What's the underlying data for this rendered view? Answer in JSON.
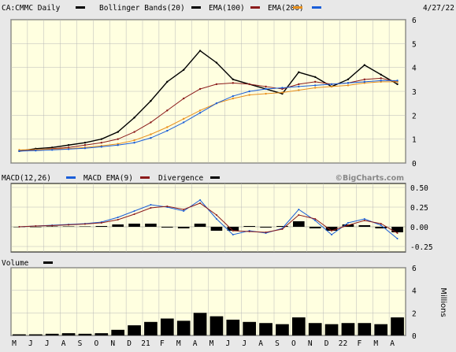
{
  "chart_data": [
    {
      "type": "line",
      "panel": "price",
      "date_label": "4/27/22",
      "legend": [
        {
          "label": "CA:CMMC Daily",
          "color": "#000000"
        },
        {
          "label": "Bollinger Bands(20)",
          "color": "#000000"
        },
        {
          "label": "EMA(100)",
          "color": "#8b1a1a"
        },
        {
          "label": "EMA(200)",
          "color": "#e8901c"
        },
        {
          "label": "",
          "color": "#1a5ed8"
        }
      ],
      "ylim": [
        0,
        6
      ],
      "yticks": [
        "0",
        "1",
        "2",
        "3",
        "4",
        "5",
        "6"
      ],
      "x": [
        "2020-05",
        "2020-06",
        "2020-07",
        "2020-08",
        "2020-09",
        "2020-10",
        "2020-11",
        "2020-12",
        "2021-01",
        "2021-02",
        "2021-03",
        "2021-04",
        "2021-05",
        "2021-06",
        "2021-07",
        "2021-08",
        "2021-09",
        "2021-10",
        "2021-11",
        "2021-12",
        "2022-01",
        "2022-02",
        "2022-03",
        "2022-04"
      ],
      "series": [
        {
          "name": "CA:CMMC Daily",
          "color": "#000000",
          "values": [
            0.5,
            0.6,
            0.65,
            0.75,
            0.85,
            1.0,
            1.3,
            1.9,
            2.6,
            3.4,
            3.9,
            4.7,
            4.2,
            3.5,
            3.3,
            3.1,
            2.9,
            3.8,
            3.6,
            3.2,
            3.5,
            4.1,
            3.7,
            3.3
          ]
        },
        {
          "name": "EMA(100)",
          "color": "#8b1a1a",
          "values": [
            0.5,
            0.55,
            0.6,
            0.65,
            0.75,
            0.85,
            1.0,
            1.3,
            1.7,
            2.2,
            2.7,
            3.1,
            3.3,
            3.35,
            3.3,
            3.2,
            3.1,
            3.3,
            3.4,
            3.3,
            3.35,
            3.5,
            3.55,
            3.4
          ]
        },
        {
          "name": "EMA(200)",
          "color": "#e8901c",
          "values": [
            0.55,
            0.56,
            0.58,
            0.6,
            0.65,
            0.72,
            0.8,
            0.95,
            1.2,
            1.5,
            1.85,
            2.2,
            2.5,
            2.7,
            2.85,
            2.9,
            2.95,
            3.05,
            3.15,
            3.2,
            3.25,
            3.35,
            3.4,
            3.4
          ]
        },
        {
          "name": "",
          "color": "#1a5ed8",
          "values": [
            0.5,
            0.52,
            0.55,
            0.58,
            0.62,
            0.68,
            0.75,
            0.85,
            1.05,
            1.35,
            1.7,
            2.1,
            2.5,
            2.8,
            3.0,
            3.1,
            3.15,
            3.2,
            3.25,
            3.3,
            3.35,
            3.4,
            3.45,
            3.45
          ]
        }
      ]
    },
    {
      "type": "line",
      "panel": "macd",
      "legend": [
        {
          "label": "MACD(12,26)",
          "color": "#1a5ed8"
        },
        {
          "label": "MACD EMA(9)",
          "color": "#8b1a1a"
        },
        {
          "label": "Divergence",
          "color": "#000000"
        }
      ],
      "watermark": "©BigCharts.com",
      "ylim": [
        -0.32,
        0.55
      ],
      "yticks": [
        "0.50",
        "0.25",
        "0.00",
        "-0.25"
      ],
      "ytick_values": [
        0.5,
        0.25,
        0.0,
        -0.25
      ],
      "x": [
        "2020-05",
        "2020-06",
        "2020-07",
        "2020-08",
        "2020-09",
        "2020-10",
        "2020-11",
        "2020-12",
        "2021-01",
        "2021-02",
        "2021-03",
        "2021-04",
        "2021-05",
        "2021-06",
        "2021-07",
        "2021-08",
        "2021-09",
        "2021-10",
        "2021-11",
        "2021-12",
        "2022-01",
        "2022-02",
        "2022-03",
        "2022-04"
      ],
      "series": [
        {
          "name": "MACD(12,26)",
          "color": "#1a5ed8",
          "values": [
            0.0,
            0.01,
            0.02,
            0.03,
            0.04,
            0.06,
            0.12,
            0.2,
            0.28,
            0.25,
            0.2,
            0.34,
            0.1,
            -0.1,
            -0.05,
            -0.08,
            -0.02,
            0.22,
            0.08,
            -0.1,
            0.05,
            0.1,
            0.02,
            -0.15
          ]
        },
        {
          "name": "MACD EMA(9)",
          "color": "#8b1a1a",
          "values": [
            0.0,
            0.01,
            0.015,
            0.025,
            0.035,
            0.05,
            0.09,
            0.16,
            0.24,
            0.26,
            0.22,
            0.3,
            0.15,
            -0.05,
            -0.06,
            -0.07,
            -0.03,
            0.15,
            0.1,
            -0.05,
            0.02,
            0.08,
            0.04,
            -0.08
          ]
        },
        {
          "name": "Divergence",
          "color": "#000000",
          "values": [
            0.0,
            0.0,
            0.005,
            0.005,
            0.005,
            0.01,
            0.03,
            0.04,
            0.04,
            -0.01,
            -0.02,
            0.04,
            -0.05,
            -0.05,
            0.01,
            -0.01,
            0.01,
            0.07,
            -0.02,
            -0.05,
            0.03,
            0.02,
            -0.02,
            -0.07
          ]
        }
      ]
    },
    {
      "type": "bar",
      "panel": "volume",
      "legend": [
        {
          "label": "Volume",
          "color": "#000000"
        }
      ],
      "ylabel": "Millions",
      "ylim": [
        0,
        6
      ],
      "yticks": [
        "0",
        "2",
        "4",
        "6"
      ],
      "categories": [
        "M",
        "J",
        "J",
        "A",
        "S",
        "O",
        "N",
        "D",
        "21",
        "F",
        "M",
        "A",
        "M",
        "J",
        "J",
        "A",
        "S",
        "O",
        "N",
        "D",
        "22",
        "F",
        "M",
        "A"
      ],
      "values": [
        0.1,
        0.1,
        0.15,
        0.2,
        0.15,
        0.2,
        0.5,
        0.9,
        1.2,
        1.5,
        1.3,
        2.0,
        1.7,
        1.4,
        1.2,
        1.1,
        1.0,
        1.6,
        1.1,
        1.0,
        1.1,
        1.1,
        1.0,
        1.6
      ]
    }
  ]
}
